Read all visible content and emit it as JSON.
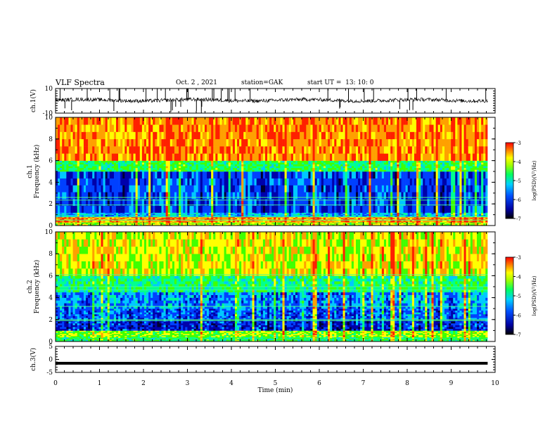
{
  "header": {
    "title": "VLF Spectra",
    "date": "Oct. 2 , 2021",
    "station": "station=GAK",
    "start_ut": "start UT =  13: 10: 0"
  },
  "colors": {
    "spectrogram_scale": [
      "#000033",
      "#0000aa",
      "#0040ff",
      "#00c8ff",
      "#00ff90",
      "#40ff00",
      "#ffff00",
      "#ffa000",
      "#ff2000"
    ]
  },
  "chart_data": [
    {
      "type": "line",
      "name": "ch1-waveform",
      "ylabel": "ch.1(V)",
      "ylim": [
        -10,
        10
      ],
      "yticks": [
        "10",
        "-10"
      ],
      "x_range_min": [
        0,
        9.83
      ],
      "baseline_v": 0.5,
      "noise_amplitude_v": 1.5,
      "spike_count": 40
    },
    {
      "type": "heatmap",
      "name": "ch1-spectrogram",
      "ylabel": "ch.1\nFrequency (kHz)",
      "ylim": [
        0,
        10
      ],
      "yticks": [
        "0",
        "2",
        "4",
        "6",
        "8",
        "10"
      ],
      "x_range_min": [
        0,
        9.83
      ],
      "colorbar": {
        "label": "log(PSD)(V²/Hz)",
        "range": [
          -7,
          -3
        ],
        "ticks": [
          "-3",
          "-4",
          "-5",
          "-6",
          "-7"
        ]
      },
      "bands": [
        {
          "f": [
            0,
            0.3
          ],
          "level": -4.5
        },
        {
          "f": [
            0.3,
            0.8
          ],
          "level": -3.8
        },
        {
          "f": [
            0.8,
            1.2
          ],
          "level": -5.8
        },
        {
          "f": [
            1.2,
            5.0
          ],
          "level": -6.3
        },
        {
          "f": [
            5.0,
            6.0
          ],
          "level": -5.0
        },
        {
          "f": [
            6.0,
            10.0
          ],
          "level": -3.8
        }
      ],
      "tones_khz": [
        0.5,
        0.8,
        1.9,
        2.35,
        2.6
      ]
    },
    {
      "type": "heatmap",
      "name": "ch2-spectrogram",
      "ylabel": "ch.2\nFrequency (kHz)",
      "ylim": [
        0,
        10
      ],
      "yticks": [
        "0",
        "2",
        "4",
        "6",
        "8",
        "10"
      ],
      "x_range_min": [
        0,
        9.83
      ],
      "colorbar": {
        "label": "log(PSD)(V²/Hz)",
        "range": [
          -7,
          -3
        ],
        "ticks": [
          "-3",
          "-4",
          "-5",
          "-6",
          "-7"
        ]
      },
      "bands": [
        {
          "f": [
            0,
            0.4
          ],
          "level": -5.0
        },
        {
          "f": [
            0.4,
            1.0
          ],
          "level": -4.6
        },
        {
          "f": [
            1.0,
            2.0
          ],
          "level": -6.5
        },
        {
          "f": [
            2.0,
            3.0
          ],
          "level": -6.2
        },
        {
          "f": [
            3.0,
            4.5
          ],
          "level": -6.0
        },
        {
          "f": [
            4.5,
            6.0
          ],
          "level": -5.1
        },
        {
          "f": [
            6.0,
            10.0
          ],
          "level": -4.3
        }
      ],
      "tones_khz": [
        1.9,
        2.0,
        3.2,
        4.7,
        5.0,
        6.1
      ]
    },
    {
      "type": "line",
      "name": "ch3-trace",
      "ylabel": "ch.3(V)",
      "ylim": [
        -5,
        5
      ],
      "yticks": [
        "5",
        "0",
        "-5"
      ],
      "x_range_min": [
        0,
        9.83
      ],
      "level_v": -1.5
    }
  ],
  "xaxis": {
    "label": "Time (min)",
    "range": [
      0,
      10
    ],
    "ticks": [
      "0",
      "1",
      "2",
      "3",
      "4",
      "5",
      "6",
      "7",
      "8",
      "9",
      "10"
    ]
  }
}
